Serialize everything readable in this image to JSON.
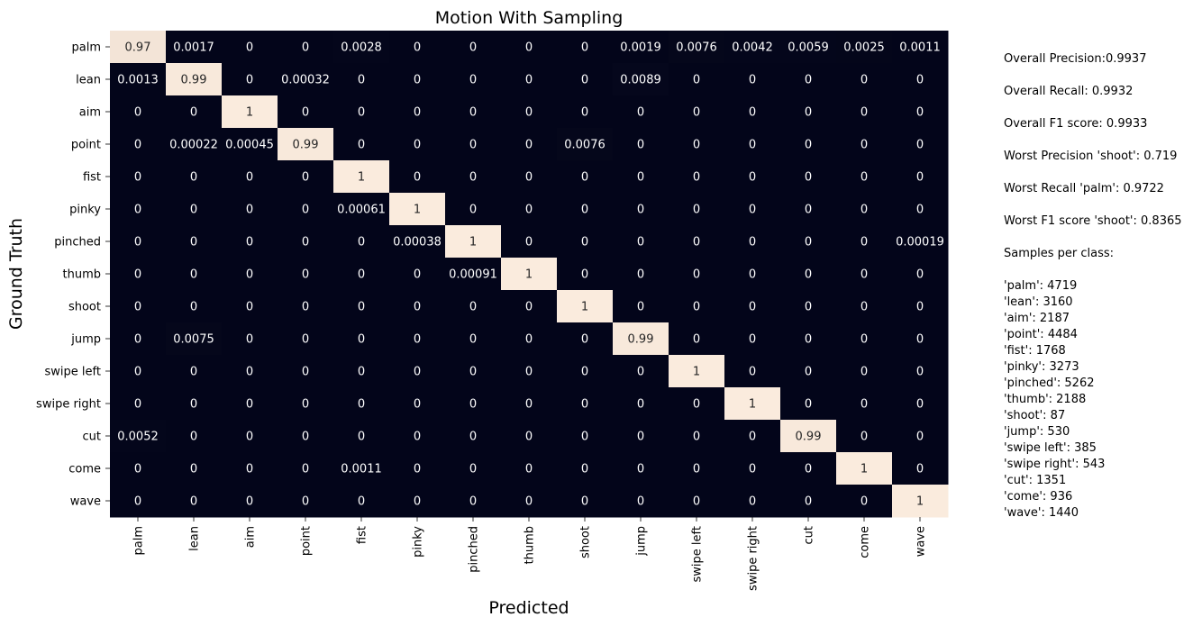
{
  "chart_data": {
    "type": "heatmap",
    "title": "Motion With Sampling",
    "xlabel": "Predicted",
    "ylabel": "Ground Truth",
    "x_categories": [
      "palm",
      "lean",
      "aim",
      "point",
      "fist",
      "pinky",
      "pinched",
      "thumb",
      "shoot",
      "jump",
      "swipe left",
      "swipe right",
      "cut",
      "come",
      "wave"
    ],
    "y_categories": [
      "palm",
      "lean",
      "aim",
      "point",
      "fist",
      "pinky",
      "pinched",
      "thumb",
      "shoot",
      "jump",
      "swipe left",
      "swipe right",
      "cut",
      "come",
      "wave"
    ],
    "values": [
      [
        0.97,
        0.0017,
        0,
        0,
        0.0028,
        0,
        0,
        0,
        0,
        0.0019,
        0.0076,
        0.0042,
        0.0059,
        0.0025,
        0.0011
      ],
      [
        0.0013,
        0.99,
        0,
        0.00032,
        0,
        0,
        0,
        0,
        0,
        0.0089,
        0,
        0,
        0,
        0,
        0
      ],
      [
        0,
        0,
        1,
        0,
        0,
        0,
        0,
        0,
        0,
        0,
        0,
        0,
        0,
        0,
        0
      ],
      [
        0,
        0.00022,
        0.00045,
        0.99,
        0,
        0,
        0,
        0,
        0.0076,
        0,
        0,
        0,
        0,
        0,
        0
      ],
      [
        0,
        0,
        0,
        0,
        1,
        0,
        0,
        0,
        0,
        0,
        0,
        0,
        0,
        0,
        0
      ],
      [
        0,
        0,
        0,
        0,
        0.00061,
        1,
        0,
        0,
        0,
        0,
        0,
        0,
        0,
        0,
        0
      ],
      [
        0,
        0,
        0,
        0,
        0,
        0.00038,
        1,
        0,
        0,
        0,
        0,
        0,
        0,
        0,
        0.00019
      ],
      [
        0,
        0,
        0,
        0,
        0,
        0,
        0.00091,
        1,
        0,
        0,
        0,
        0,
        0,
        0,
        0
      ],
      [
        0,
        0,
        0,
        0,
        0,
        0,
        0,
        0,
        1,
        0,
        0,
        0,
        0,
        0,
        0
      ],
      [
        0,
        0.0075,
        0,
        0,
        0,
        0,
        0,
        0,
        0,
        0.99,
        0,
        0,
        0,
        0,
        0
      ],
      [
        0,
        0,
        0,
        0,
        0,
        0,
        0,
        0,
        0,
        0,
        1,
        0,
        0,
        0,
        0
      ],
      [
        0,
        0,
        0,
        0,
        0,
        0,
        0,
        0,
        0,
        0,
        0,
        1,
        0,
        0,
        0
      ],
      [
        0.0052,
        0,
        0,
        0,
        0,
        0,
        0,
        0,
        0,
        0,
        0,
        0,
        0.99,
        0,
        0
      ],
      [
        0,
        0,
        0,
        0,
        0.0011,
        0,
        0,
        0,
        0,
        0,
        0,
        0,
        0,
        1,
        0
      ],
      [
        0,
        0,
        0,
        0,
        0,
        0,
        0,
        0,
        0,
        0,
        0,
        0,
        0,
        0,
        1
      ]
    ],
    "colors": {
      "low": "#03051a",
      "high": "#faebdd",
      "low_text": "#ffffff",
      "high_text": "#262626"
    },
    "colorbar": false
  },
  "summary": {
    "overall_precision": "Overall Precision:0.9937",
    "overall_recall": "Overall Recall: 0.9932",
    "overall_f1": "Overall F1 score: 0.9933",
    "worst_precision": "Worst Precision 'shoot': 0.719",
    "worst_recall": "Worst Recall 'palm': 0.9722",
    "worst_f1": "Worst F1 score 'shoot': 0.8365",
    "samples_heading": "Samples per class:",
    "samples": [
      "'palm': 4719",
      "'lean': 3160",
      "'aim': 2187",
      "'point': 4484",
      "'fist': 1768",
      "'pinky': 3273",
      "'pinched': 5262",
      "'thumb': 2188",
      "'shoot': 87",
      "'jump': 530",
      "'swipe left': 385",
      "'swipe right': 543",
      "'cut': 1351",
      "'come': 936",
      "'wave': 1440"
    ]
  }
}
